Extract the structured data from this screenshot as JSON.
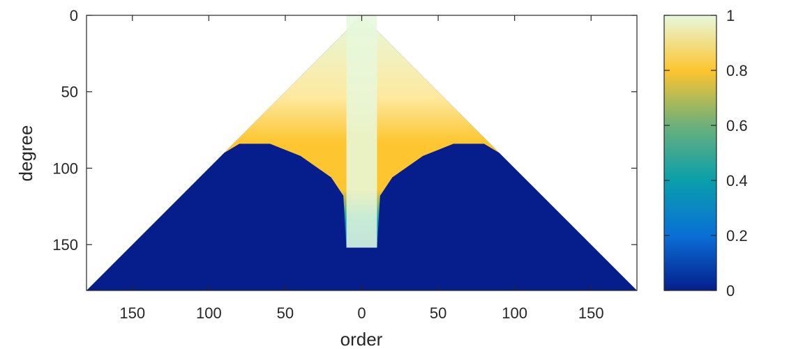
{
  "chart_data": {
    "type": "heatmap",
    "title": "",
    "xlabel": "order",
    "ylabel": "degree",
    "xlim": [
      -180,
      180
    ],
    "ylim": [
      0,
      180
    ],
    "y_reversed": true,
    "x_tick_labels": [
      "150",
      "100",
      "50",
      "0",
      "50",
      "100",
      "150"
    ],
    "x_tick_values": [
      -150,
      -100,
      -50,
      0,
      50,
      100,
      150
    ],
    "y_ticks": [
      0,
      50,
      100,
      150
    ],
    "colorbar": {
      "range": [
        0,
        1
      ],
      "ticks": [
        0,
        0.2,
        0.4,
        0.6,
        0.8,
        1
      ],
      "tick_labels": [
        "0",
        "0.2",
        "0.4",
        "0.6",
        "0.8",
        "1"
      ],
      "colormap": "parula-like",
      "stops": [
        {
          "value": 0.0,
          "color": "#061e8c"
        },
        {
          "value": 0.2,
          "color": "#0a6fd6"
        },
        {
          "value": 0.4,
          "color": "#0a9fab"
        },
        {
          "value": 0.6,
          "color": "#6cb07a"
        },
        {
          "value": 0.8,
          "color": "#fdc52f"
        },
        {
          "value": 1.0,
          "color": "#e6f8dc"
        }
      ]
    },
    "domain_note": "defined for |order| <= degree (triangular region)",
    "degree_threshold_by_order": [
      {
        "order": 0,
        "degree": 152
      },
      {
        "order": 10,
        "degree": 152
      },
      {
        "order": 12,
        "degree": 118
      },
      {
        "order": 20,
        "degree": 106
      },
      {
        "order": 40,
        "degree": 92
      },
      {
        "order": 60,
        "degree": 84
      },
      {
        "order": 80,
        "degree": 84
      },
      {
        "order": 90,
        "degree": 90
      }
    ]
  }
}
